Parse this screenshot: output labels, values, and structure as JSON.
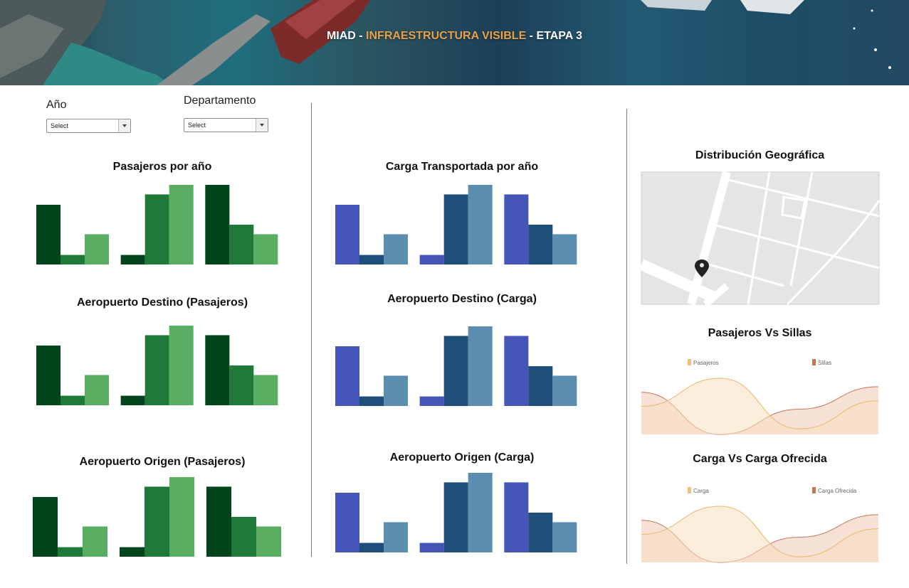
{
  "header": {
    "title_part1": "MIAD - ",
    "title_part2": "INFRAESTRUCTURA VISIBLE",
    "title_part3": " - ETAPA 3",
    "accent_color": "#e8a04a"
  },
  "filters": {
    "year": {
      "label": "Año",
      "value": "Select"
    },
    "department": {
      "label": "Departamento",
      "value": "Select"
    }
  },
  "charts": {
    "pasajeros_anio": {
      "title": "Pasajeros por año"
    },
    "destino_pasajeros": {
      "title": "Aeropuerto Destino (Pasajeros)"
    },
    "origen_pasajeros": {
      "title": "Aeropuerto Origen (Pasajeros)"
    },
    "carga_anio": {
      "title": "Carga Transportada por año"
    },
    "destino_carga": {
      "title": "Aeropuerto Destino (Carga)"
    },
    "origen_carga": {
      "title": "Aeropuerto Origen (Carga)"
    },
    "mapa": {
      "title": "Distribución Geográfica",
      "pin_icon": "map-pin-icon"
    },
    "pasajeros_sillas": {
      "title": "Pasajeros Vs Sillas",
      "legend": [
        "Pasajeros",
        "Sillas"
      ]
    },
    "carga_ofrecida": {
      "title": "Carga Vs Carga Ofrecida",
      "legend": [
        "Carga",
        "Carga Ofrecida"
      ]
    }
  },
  "chart_data": [
    {
      "type": "bar",
      "chart": "pasajeros_anio",
      "groups": 3,
      "series": [
        {
          "values": [
            75,
            12,
            100
          ]
        },
        {
          "values": [
            12,
            88,
            50
          ]
        },
        {
          "values": [
            38,
            100,
            38
          ]
        }
      ]
    },
    {
      "type": "bar",
      "chart": "destino_pasajeros",
      "groups": 3,
      "series": [
        {
          "values": [
            75,
            12,
            88
          ]
        },
        {
          "values": [
            12,
            88,
            50
          ]
        },
        {
          "values": [
            38,
            100,
            38
          ]
        }
      ]
    },
    {
      "type": "bar",
      "chart": "origen_pasajeros",
      "groups": 3,
      "series": [
        {
          "values": [
            75,
            12,
            88
          ]
        },
        {
          "values": [
            12,
            88,
            50
          ]
        },
        {
          "values": [
            38,
            100,
            38
          ]
        }
      ]
    },
    {
      "type": "bar",
      "chart": "carga_anio",
      "groups": 3,
      "series": [
        {
          "values": [
            75,
            12,
            88
          ]
        },
        {
          "values": [
            12,
            88,
            50
          ]
        },
        {
          "values": [
            38,
            100,
            38
          ]
        }
      ]
    },
    {
      "type": "bar",
      "chart": "destino_carga",
      "groups": 3,
      "series": [
        {
          "values": [
            75,
            12,
            88
          ]
        },
        {
          "values": [
            12,
            88,
            50
          ]
        },
        {
          "values": [
            38,
            100,
            38
          ]
        }
      ]
    },
    {
      "type": "bar",
      "chart": "origen_carga",
      "groups": 3,
      "series": [
        {
          "values": [
            75,
            12,
            88
          ]
        },
        {
          "values": [
            12,
            88,
            50
          ]
        },
        {
          "values": [
            38,
            100,
            38
          ]
        }
      ]
    },
    {
      "type": "area",
      "chart": "pasajeros_sillas",
      "series": [
        {
          "name": "Pasajeros",
          "values": [
            0.5,
            1.0,
            0.1,
            0.6
          ]
        },
        {
          "name": "Sillas",
          "values": [
            0.75,
            0.0,
            0.45,
            0.85
          ]
        }
      ]
    },
    {
      "type": "area",
      "chart": "carga_ofrecida",
      "series": [
        {
          "name": "Carga",
          "values": [
            0.5,
            1.0,
            0.1,
            0.6
          ]
        },
        {
          "name": "Carga Ofrecida",
          "values": [
            0.75,
            0.0,
            0.45,
            0.85
          ]
        }
      ]
    }
  ],
  "colors": {
    "green": [
      "#00441b",
      "#1f7a3a",
      "#5aae61"
    ],
    "blue": [
      "#4656b8",
      "#1d4f7a",
      "#5a8db0"
    ],
    "area1_fill": "#f7dfc0",
    "area1_line": "#e9b96b",
    "area2_fill": "#efc9b4",
    "area2_line": "#c8765a",
    "legend1": "#f2be7a",
    "legend2": "#c8764a"
  }
}
